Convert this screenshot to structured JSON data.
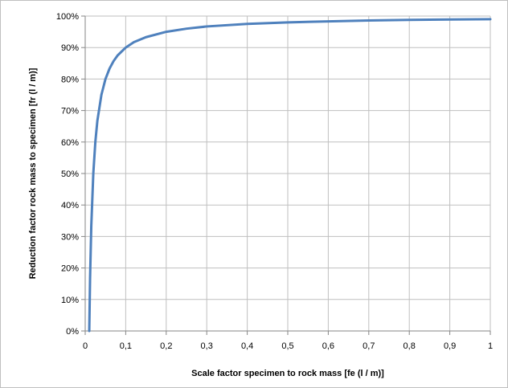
{
  "chart_data": {
    "type": "line",
    "title": "",
    "xlabel": "Scale factor specimen to rock mass [fe (l / m)]",
    "ylabel": "Reduction factor rock mass to specimen [fr (l / m)]",
    "xlim": [
      0,
      1
    ],
    "ylim": [
      0,
      1
    ],
    "x_ticks": [
      "0",
      "0,1",
      "0,2",
      "0,3",
      "0,4",
      "0,5",
      "0,6",
      "0,7",
      "0,8",
      "0,9",
      "1"
    ],
    "y_ticks": [
      "0%",
      "10%",
      "20%",
      "30%",
      "40%",
      "50%",
      "60%",
      "70%",
      "80%",
      "90%",
      "100%"
    ],
    "grid": true,
    "legend": "none",
    "series": [
      {
        "color": "#4f81bd",
        "x": [
          0.01,
          0.012,
          0.015,
          0.02,
          0.025,
          0.03,
          0.04,
          0.05,
          0.06,
          0.07,
          0.08,
          0.1,
          0.12,
          0.15,
          0.2,
          0.25,
          0.3,
          0.4,
          0.5,
          0.6,
          0.7,
          0.8,
          0.9,
          1.0
        ],
        "y": [
          0.0,
          0.167,
          0.333,
          0.5,
          0.6,
          0.667,
          0.75,
          0.8,
          0.833,
          0.857,
          0.875,
          0.9,
          0.917,
          0.933,
          0.95,
          0.96,
          0.967,
          0.975,
          0.98,
          0.983,
          0.986,
          0.988,
          0.989,
          0.99
        ]
      }
    ]
  }
}
